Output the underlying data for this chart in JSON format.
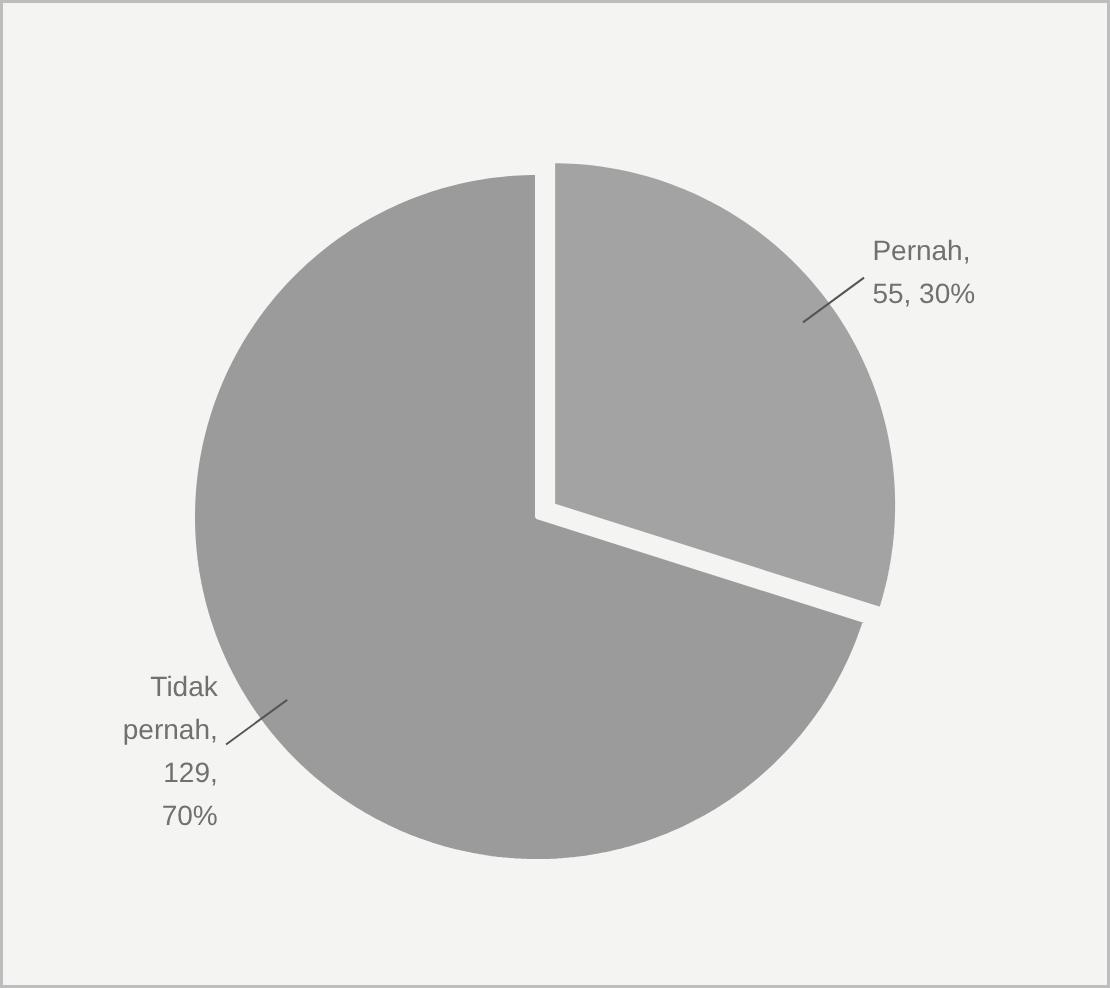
{
  "chart_data": {
    "type": "pie",
    "categories": [
      "Pernah",
      "Tidak pernah"
    ],
    "values": [
      55,
      129
    ],
    "colors": [
      "#a3a3a3",
      "#9b9b9b"
    ],
    "value_labels": [
      ", 55, 30%",
      ", 129, 70%"
    ]
  }
}
